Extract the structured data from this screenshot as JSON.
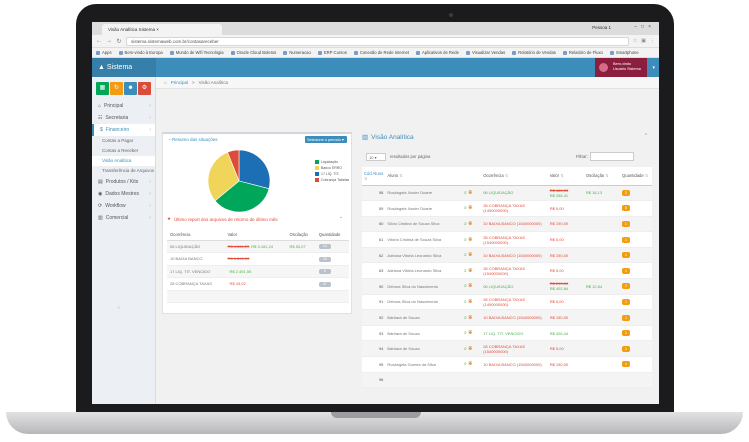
{
  "browser": {
    "tab_title": "Visão Analítica Sistema",
    "window_user": "Pessoa 1",
    "url": "sistema.sistemaweb.com.br/contasareceber",
    "bookmarks": [
      "Apps",
      "Bem-vindo à Europa",
      "Mundo de Wifi Tecnologia",
      "Oracle Cloud Boletos",
      "Numeracao",
      "ERP Cursos",
      "Conexão de Rede Internet",
      "Aplicativos de Rede",
      "Visualizar Vendas",
      "Relatório de Vendas",
      "Relatório de Fluxo",
      "Smartphone"
    ]
  },
  "app": {
    "logo": "Sistema",
    "user": {
      "line1": "Bem-vindo",
      "line2": "Usuário Sistema"
    }
  },
  "sidebar": {
    "quick_buttons": [
      {
        "icon": "bar-chart-icon",
        "glyph": "▦",
        "color": "#00a65a"
      },
      {
        "icon": "refresh-icon",
        "glyph": "↻",
        "color": "#f39c12"
      },
      {
        "icon": "users-icon",
        "glyph": "☻",
        "color": "#3c8dbc"
      },
      {
        "icon": "gear-icon",
        "glyph": "⚙",
        "color": "#dd4b39"
      }
    ],
    "items": [
      {
        "label": "Principal",
        "icon": "home-icon",
        "glyph": "⌂"
      },
      {
        "label": "Secretaria",
        "icon": "users-icon",
        "glyph": "☷"
      },
      {
        "label": "Financeiro",
        "icon": "money-icon",
        "glyph": "$",
        "active": true
      }
    ],
    "submenu": [
      "Contas a Pagar",
      "Contas a Receber",
      "Visão Analítica",
      "Transferência de Arquivos"
    ],
    "submenu_current": 2,
    "items_after": [
      {
        "label": "Produtos / Kits",
        "icon": "box-icon",
        "glyph": "▤"
      },
      {
        "label": "Dados Mestres",
        "icon": "database-icon",
        "glyph": "◉"
      },
      {
        "label": "Workflow",
        "icon": "workflow-icon",
        "glyph": "⟳"
      },
      {
        "label": "Comercial",
        "icon": "chart-icon",
        "glyph": "▥"
      }
    ],
    "collapse_icon": "‹"
  },
  "breadcrumb": {
    "home": "Principal",
    "separator": ">",
    "current": "Visão Analítica"
  },
  "left_panel": {
    "title": "Resumo das situações",
    "select_value": "Selecione o período",
    "legend": [
      {
        "label": "Liquidação",
        "color": "#00a65a"
      },
      {
        "label": "Banco ERRO",
        "color": "#f0d55a"
      },
      {
        "label": "17 LIQ. TIT.",
        "color": "#1c6fb4"
      },
      {
        "label": "Cobrança Tabelas",
        "color": "#dd4b39"
      }
    ],
    "pie_values": [
      35,
      30,
      29,
      6
    ],
    "report_title": "Último report dos arquivos de retorno de último mês",
    "table": {
      "headers": [
        "Ocorrência",
        "Valor",
        "Oscilação",
        "Quantidade"
      ],
      "rows": [
        {
          "name": "06 LIQUIDAÇÃO",
          "value_old": "R$ 4.561,23",
          "value": "R$ 3.161,24",
          "osc": "R$ 53,27",
          "qty": "14"
        },
        {
          "name": "10 BAIXA BANCO",
          "value_old": "R$ 6.500,00",
          "value": "",
          "osc": "",
          "qty": "15"
        },
        {
          "name": "17 LIQ. TIT. VENCIDO",
          "value_old": "",
          "value": "R$ 2.491,55",
          "osc": "",
          "qty": "8"
        },
        {
          "name": "28 COBRANÇA TAXAS",
          "value_old": "",
          "value": "R$ 43,02",
          "osc": "",
          "qty": "37"
        },
        {
          "name": "",
          "value_old": "",
          "value": "",
          "osc": "",
          "qty": ""
        }
      ]
    }
  },
  "right_panel": {
    "title": "Visão Analítica",
    "length_value": "10",
    "length_label": "resultados por página",
    "filter_label": "Filtrar:",
    "table": {
      "headers": [
        "Cód Aluno",
        "Aluno",
        "",
        "Ocorrência",
        "Valor",
        "Oscilação",
        "Quantidade"
      ],
      "rows": [
        {
          "id": "58",
          "name": "Rosângela Xavier Duarte",
          "occ": "06 LIQUIDAÇÃO",
          "occ_color": "green",
          "val1": "R$ 489,33",
          "val2": "R$ 266,41",
          "osc": "R$ 18,13",
          "qty": "2",
          "odd": true
        },
        {
          "id": "59",
          "name": "Rosângela Xavier Duarte",
          "occ": "28 COBRANÇA TAXAS",
          "occ2": "(1490000000)",
          "occ_color": "red",
          "val1": "R$ 5,00",
          "val2": "",
          "osc": "",
          "qty": "8",
          "odd": false
        },
        {
          "id": "60",
          "name": "Silvio Cristina de Souza Silva",
          "occ": "10 BAIXA BANCO (1540000000)",
          "occ_color": "red",
          "val1": "R$ 150,00",
          "val2": "",
          "osc": "",
          "qty": "1",
          "odd": true
        },
        {
          "id": "61",
          "name": "Vitória Cristina de Souza Silva",
          "occ": "28 COBRANÇA TAXAS",
          "occ2": "(1540000000)",
          "occ_color": "red",
          "val1": "R$ 5,00",
          "val2": "",
          "osc": "",
          "qty": "1",
          "odd": false
        },
        {
          "id": "62",
          "name": "Adriana Vitória Leonardo Silva",
          "occ": "10 BAIXA BANCO (1540000000)",
          "occ_color": "red",
          "val1": "R$ 150,00",
          "val2": "",
          "osc": "",
          "qty": "1",
          "odd": true
        },
        {
          "id": "63",
          "name": "Adriana Vitória Leonardo Silva",
          "occ": "28 COBRANÇA TAXAS",
          "occ2": "(1540000000)",
          "occ_color": "red",
          "val1": "R$ 5,00",
          "val2": "",
          "osc": "",
          "qty": "1",
          "odd": false
        },
        {
          "id": "90",
          "name": "Débora Silva do Nascimento",
          "occ": "06 LIQUIDAÇÃO",
          "occ_color": "green",
          "val1": "R$ 290,00",
          "val2": "R$ 402,84",
          "osc": "R$ 12,84",
          "qty": "2",
          "odd": true
        },
        {
          "id": "91",
          "name": "Débora Silva do Nascimento",
          "occ": "28 COBRANÇA TAXAS",
          "occ2": "(1490000000)",
          "occ_color": "red",
          "val1": "R$ 5,00",
          "val2": "",
          "osc": "",
          "qty": "1",
          "odd": false
        },
        {
          "id": "92",
          "name": "Bárbara de Souza",
          "occ": "10 BAIXA BANCO (1540000000)",
          "occ_color": "red",
          "val1": "R$ 150,00",
          "val2": "",
          "osc": "",
          "qty": "1",
          "odd": true
        },
        {
          "id": "93",
          "name": "Bárbara de Souza",
          "occ": "17 LIQ. TIT. VENCIDO",
          "occ_color": "green",
          "val1": "R$ 426,44",
          "val2": "",
          "osc": "",
          "qty": "1",
          "odd": false
        },
        {
          "id": "94",
          "name": "Bárbara de Souza",
          "occ": "28 COBRANÇA TAXAS",
          "occ2": "(1540000000)",
          "occ_color": "red",
          "val1": "R$ 5,00",
          "val2": "",
          "osc": "",
          "qty": "1",
          "odd": true
        },
        {
          "id": "95",
          "name": "Rosângela Gomes da Silva",
          "occ": "10 BAIXA BANCO (1540000000)",
          "occ_color": "red",
          "val1": "R$ 150,00",
          "val2": "",
          "osc": "",
          "qty": "1",
          "odd": false
        },
        {
          "id": "96",
          "name": "",
          "occ": "",
          "occ_color": "red",
          "val1": "",
          "val2": "",
          "osc": "",
          "qty": "",
          "odd": true
        }
      ]
    }
  }
}
